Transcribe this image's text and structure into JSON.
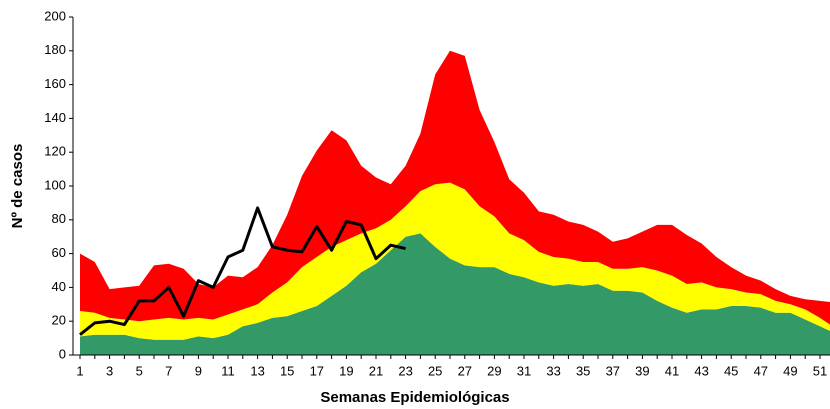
{
  "chart_data": {
    "type": "stacked_area_line",
    "xlabel": "Semanas Epidemiológicas",
    "ylabel": "Nº de casos",
    "categories": [
      1,
      null,
      3,
      null,
      5,
      null,
      7,
      null,
      9,
      null,
      11,
      null,
      13,
      null,
      15,
      null,
      17,
      null,
      19,
      null,
      21,
      null,
      23,
      null,
      25,
      null,
      27,
      null,
      29,
      null,
      31,
      null,
      33,
      null,
      35,
      null,
      37,
      null,
      39,
      null,
      41,
      null,
      43,
      null,
      45,
      null,
      47,
      null,
      49,
      null,
      51,
      null
    ],
    "ylim": [
      0,
      200
    ],
    "yticks": [
      0,
      20,
      40,
      60,
      80,
      100,
      120,
      140,
      160,
      180,
      200
    ],
    "series": [
      {
        "color": "#339966",
        "stack": true,
        "values": [
          11,
          12,
          12,
          12,
          10,
          9,
          9,
          9,
          11,
          10,
          12,
          17,
          19,
          22,
          23,
          26,
          29,
          35,
          41,
          49,
          54,
          62,
          70,
          72,
          64,
          57,
          53,
          52,
          52,
          48,
          46,
          43,
          41,
          42,
          41,
          42,
          38,
          38,
          37,
          32,
          28,
          25,
          27,
          27,
          29,
          29,
          28,
          25,
          25,
          21,
          17,
          13
        ]
      },
      {
        "color": "#ffff00",
        "stack": true,
        "values": [
          15,
          13,
          10,
          9,
          10,
          12,
          13,
          12,
          11,
          11,
          12,
          10,
          11,
          15,
          20,
          26,
          29,
          29,
          27,
          23,
          21,
          18,
          18,
          25,
          37,
          45,
          45,
          36,
          30,
          24,
          22,
          18,
          17,
          15,
          14,
          13,
          13,
          13,
          15,
          18,
          19,
          17,
          16,
          13,
          10,
          8,
          8,
          7,
          5,
          6,
          5,
          3
        ]
      },
      {
        "color": "#ff0000",
        "stack": true,
        "values": [
          34,
          30,
          17,
          19,
          21,
          32,
          32,
          30,
          20,
          19,
          23,
          19,
          22,
          28,
          40,
          54,
          63,
          69,
          59,
          40,
          30,
          21,
          24,
          34,
          65,
          78,
          79,
          57,
          44,
          32,
          28,
          24,
          25,
          22,
          22,
          18,
          16,
          18,
          21,
          27,
          30,
          29,
          23,
          18,
          13,
          10,
          8,
          7,
          5,
          6,
          10,
          15
        ]
      },
      {
        "color": "#000000",
        "stack": false,
        "values": [
          12,
          19,
          20,
          18,
          32,
          32,
          40,
          23,
          44,
          40,
          58,
          62,
          87,
          64,
          62,
          61,
          76,
          62,
          79,
          77,
          57,
          65,
          63,
          null,
          null,
          null,
          null,
          null,
          null,
          null,
          null,
          null,
          null,
          null,
          null,
          null,
          null,
          null,
          null,
          null,
          null,
          null,
          null,
          null,
          null,
          null,
          null,
          null,
          null,
          null,
          null,
          null
        ]
      }
    ]
  }
}
